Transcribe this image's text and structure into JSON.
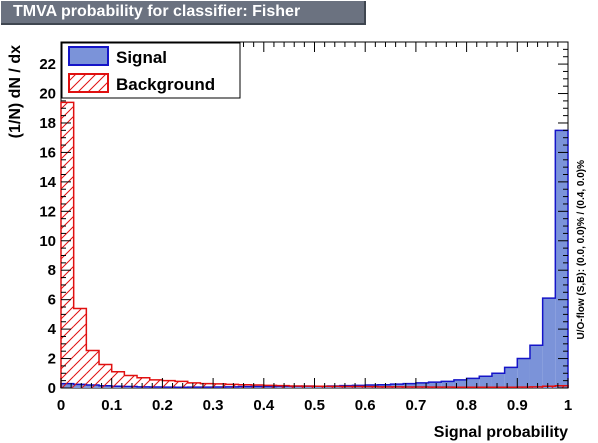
{
  "title": "TMVA probability for classifier: Fisher",
  "chart_data": {
    "type": "histogram",
    "title": "TMVA probability for classifier: Fisher",
    "xlabel": "Signal probability",
    "ylabel": "(1/N) dN / dx",
    "side_label": "U/O-flow (S,B): (0.0, 0.0)% / (0.4, 0.0)%",
    "xlim": [
      0,
      1
    ],
    "ylim": [
      0,
      23.5
    ],
    "x_ticks": [
      "0",
      "0.1",
      "0.2",
      "0.3",
      "0.4",
      "0.5",
      "0.6",
      "0.7",
      "0.8",
      "0.9",
      "1"
    ],
    "y_ticks": [
      "0",
      "2",
      "4",
      "6",
      "8",
      "10",
      "12",
      "14",
      "16",
      "18",
      "20",
      "22"
    ],
    "bin_width": 0.025,
    "legend_position": "top-left",
    "series": [
      {
        "name": "Signal",
        "fill": "#7b93d9",
        "line": "#1515c8",
        "values": [
          0.3,
          0.25,
          0.2,
          0.15,
          0.12,
          0.1,
          0.08,
          0.07,
          0.06,
          0.05,
          0.06,
          0.06,
          0.07,
          0.08,
          0.09,
          0.1,
          0.1,
          0.12,
          0.12,
          0.13,
          0.12,
          0.14,
          0.16,
          0.18,
          0.2,
          0.22,
          0.26,
          0.3,
          0.35,
          0.4,
          0.45,
          0.55,
          0.65,
          0.8,
          1.0,
          1.4,
          2.0,
          2.9,
          6.1,
          17.5
        ]
      },
      {
        "name": "Background",
        "fill": "hatch",
        "line": "#e01010",
        "values": [
          19.4,
          5.4,
          2.55,
          1.6,
          1.1,
          0.85,
          0.7,
          0.55,
          0.5,
          0.45,
          0.35,
          0.3,
          0.28,
          0.25,
          0.22,
          0.2,
          0.18,
          0.16,
          0.14,
          0.13,
          0.12,
          0.11,
          0.1,
          0.1,
          0.09,
          0.08,
          0.08,
          0.07,
          0.07,
          0.06,
          0.06,
          0.05,
          0.05,
          0.05,
          0.05,
          0.05,
          0.06,
          0.08,
          0.12,
          0.15
        ]
      }
    ]
  }
}
